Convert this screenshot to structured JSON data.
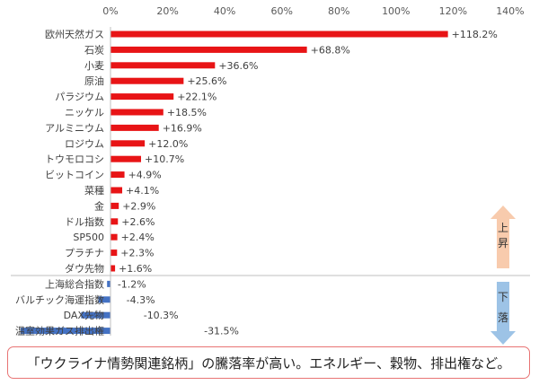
{
  "chart_data": {
    "type": "bar",
    "orientation": "horizontal",
    "categories": [
      "欧州天然ガス",
      "石炭",
      "小麦",
      "原油",
      "パラジウム",
      "ニッケル",
      "アルミニウム",
      "ロジウム",
      "トウモロコシ",
      "ビットコイン",
      "菜種",
      "金",
      "ドル指数",
      "SP500",
      "プラチナ",
      "ダウ先物",
      "上海総合指数",
      "バルチック海運指数",
      "DAX先物",
      "温室効果ガス排出権"
    ],
    "values": [
      118.2,
      68.8,
      36.6,
      25.6,
      22.1,
      18.5,
      16.9,
      12.0,
      10.7,
      4.9,
      4.1,
      2.9,
      2.6,
      2.4,
      2.3,
      1.6,
      -1.2,
      -4.3,
      -10.3,
      -31.5
    ],
    "value_labels": [
      "+118.2%",
      "+68.8%",
      "+36.6%",
      "+25.6%",
      "+22.1%",
      "+18.5%",
      "+16.9%",
      "+12.0%",
      "+10.7%",
      "+4.9%",
      "+4.1%",
      "+2.9%",
      "+2.6%",
      "+2.4%",
      "+2.3%",
      "+1.6%",
      "-1.2%",
      "-4.3%",
      "-10.3%",
      "-31.5%"
    ],
    "xlim": [
      0,
      140
    ],
    "x_ticks": [
      "0%",
      "20%",
      "40%",
      "60%",
      "80%",
      "100%",
      "120%",
      "140%"
    ],
    "tick_position": "top",
    "grid": false,
    "colors": {
      "positive": "#e81416",
      "negative": "#4472c4"
    },
    "annotations": {
      "up": {
        "text": "上昇",
        "color": "#f8cbad"
      },
      "down": {
        "text": "下落",
        "color": "#9dc3e6"
      }
    }
  },
  "caption": "「ウクライナ情勢関連銘柄」の騰落率が高い。エネルギー、穀物、排出権など。"
}
